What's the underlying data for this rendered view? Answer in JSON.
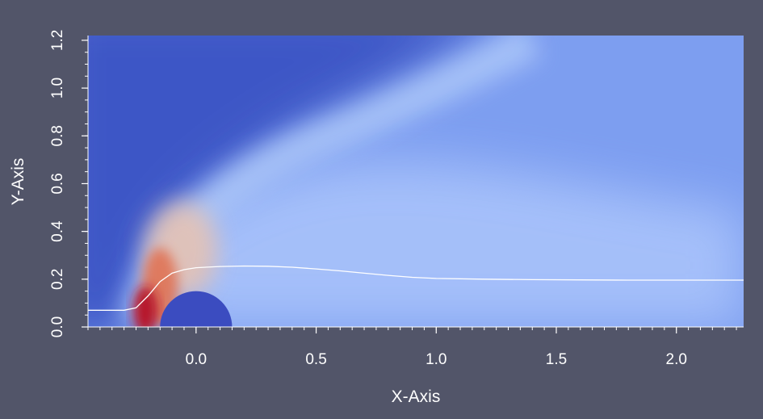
{
  "chart_data": {
    "type": "heatmap",
    "title": "",
    "xlabel": "X-Axis",
    "ylabel": "Y-Axis",
    "xlim": [
      -0.45,
      2.28
    ],
    "ylim": [
      0.0,
      1.22
    ],
    "x_ticks": [
      {
        "value": 0.0,
        "label": "0.0"
      },
      {
        "value": 0.5,
        "label": "0.5"
      },
      {
        "value": 1.0,
        "label": "1.0"
      },
      {
        "value": 1.5,
        "label": "1.5"
      },
      {
        "value": 2.0,
        "label": "2.0"
      }
    ],
    "y_ticks": [
      {
        "value": 0.0,
        "label": "0.0"
      },
      {
        "value": 0.2,
        "label": "0.2"
      },
      {
        "value": 0.4,
        "label": "0.4"
      },
      {
        "value": 0.6,
        "label": "0.6"
      },
      {
        "value": 0.8,
        "label": "0.8"
      },
      {
        "value": 1.0,
        "label": "1.0"
      },
      {
        "value": 1.2,
        "label": "1.2"
      }
    ],
    "minor_tick_step": 0.05,
    "grid": false,
    "legend": "none",
    "colormap": [
      "#3b4cc0",
      "#b8d0f9",
      "#dddddd",
      "#f08a6c",
      "#b40426"
    ],
    "obstacle": {
      "shape": "circle",
      "center": [
        0.0,
        0.0
      ],
      "radius": 0.15,
      "color": "#3b4cc0"
    },
    "streamline": {
      "color": "#ffffff",
      "points": [
        [
          -0.45,
          0.07
        ],
        [
          -0.3,
          0.07
        ],
        [
          -0.25,
          0.08
        ],
        [
          -0.2,
          0.13
        ],
        [
          -0.15,
          0.19
        ],
        [
          -0.1,
          0.225
        ],
        [
          -0.05,
          0.24
        ],
        [
          0.0,
          0.248
        ],
        [
          0.1,
          0.253
        ],
        [
          0.2,
          0.255
        ],
        [
          0.3,
          0.254
        ],
        [
          0.4,
          0.25
        ],
        [
          0.5,
          0.243
        ],
        [
          0.6,
          0.235
        ],
        [
          0.7,
          0.225
        ],
        [
          0.8,
          0.216
        ],
        [
          0.9,
          0.208
        ],
        [
          1.0,
          0.203
        ],
        [
          1.2,
          0.2
        ],
        [
          1.4,
          0.198
        ],
        [
          1.6,
          0.197
        ],
        [
          1.8,
          0.196
        ],
        [
          2.0,
          0.196
        ],
        [
          2.28,
          0.196
        ]
      ]
    }
  }
}
